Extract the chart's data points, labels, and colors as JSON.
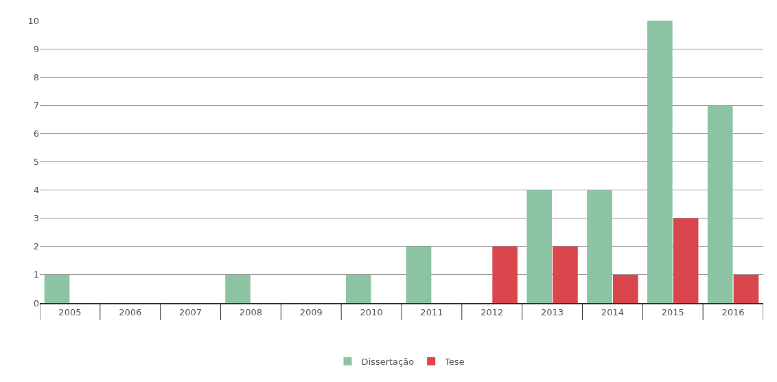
{
  "chart_data": {
    "type": "bar",
    "categories": [
      "2005",
      "2006",
      "2007",
      "2008",
      "2009",
      "2010",
      "2011",
      "2012",
      "2013",
      "2014",
      "2015",
      "2016"
    ],
    "series": [
      {
        "name": "Dissertação",
        "color": "#8cc3a2",
        "values": [
          1,
          0,
          0,
          1,
          0,
          1,
          2,
          0,
          4,
          4,
          10,
          7
        ]
      },
      {
        "name": "Tese",
        "color": "#d9474d",
        "values": [
          0,
          0,
          0,
          0,
          0,
          0,
          0,
          2,
          2,
          1,
          3,
          1
        ]
      }
    ],
    "ylim": [
      0,
      10
    ],
    "yticks": [
      0,
      1,
      2,
      3,
      4,
      5,
      6,
      7,
      8,
      9,
      10
    ],
    "grid": "y",
    "legend": "bottom"
  }
}
